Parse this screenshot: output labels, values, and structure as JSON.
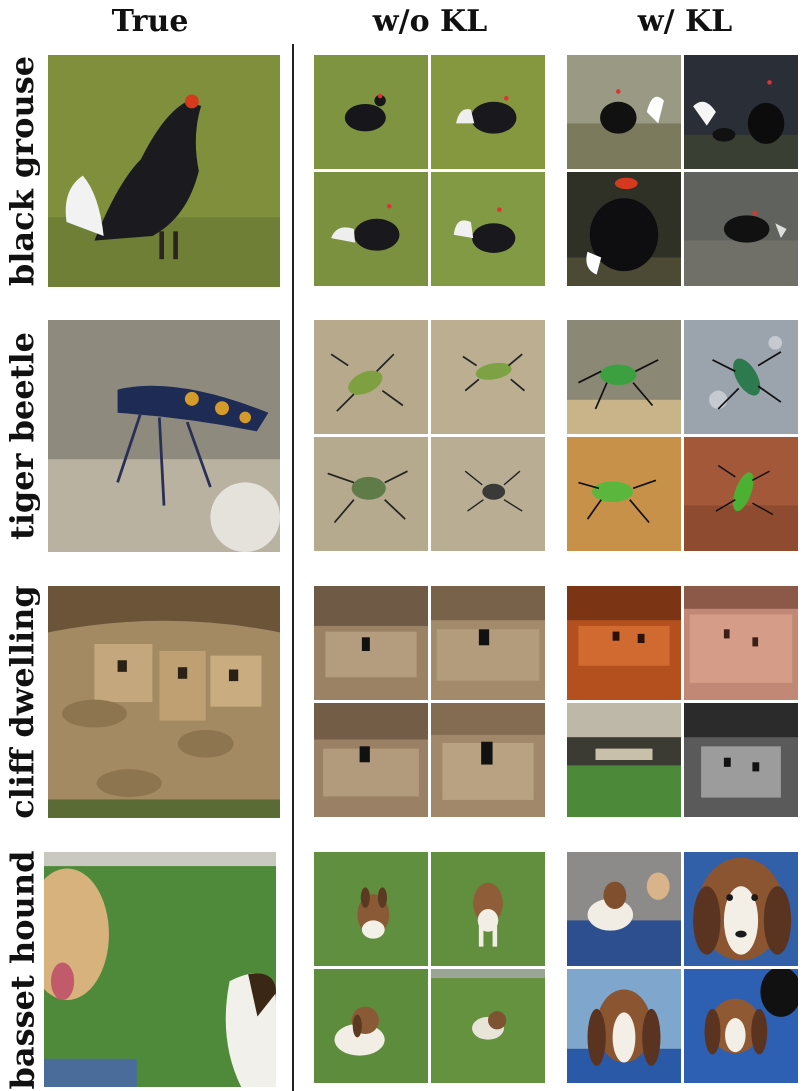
{
  "columns": {
    "true_label": "True",
    "without_kl_label": "w/o KL",
    "with_kl_label": "w/ KL"
  },
  "rows": [
    {
      "label": "black grouse"
    },
    {
      "label": "tiger beetle"
    },
    {
      "label": "cliff dwelling"
    },
    {
      "label": "basset hound"
    }
  ]
}
